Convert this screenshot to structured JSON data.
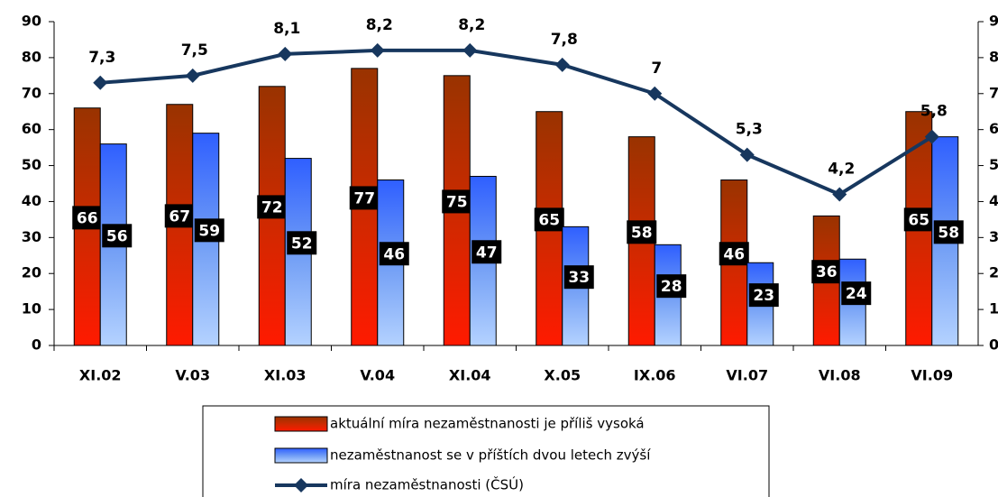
{
  "chart_data": {
    "type": "bar_line",
    "categories": [
      "XI.02",
      "V.03",
      "XI.03",
      "V.04",
      "XI.04",
      "X.05",
      "IX.06",
      "VI.07",
      "VI.08",
      "VI.09"
    ],
    "series": [
      {
        "name": "aktuální míra nezaměstnanosti je příliš vysoká",
        "color": "#cc2200",
        "values": [
          66,
          67,
          72,
          77,
          75,
          65,
          58,
          46,
          36,
          65
        ]
      },
      {
        "name": "nezaměstnanost se v příštích dvou letech zvýší",
        "color": "#3366ff",
        "values": [
          56,
          59,
          52,
          46,
          47,
          33,
          28,
          23,
          24,
          58
        ]
      },
      {
        "name": "míra nezaměstnanosti (ČSÚ)",
        "color": "#17375e",
        "axis": "y2",
        "values": [
          7.3,
          7.5,
          8.1,
          8.2,
          8.2,
          7.8,
          7,
          5.3,
          4.2,
          5.8
        ],
        "value_labels": [
          "7,3",
          "7,5",
          "8,1",
          "8,2",
          "8,2",
          "7,8",
          "7",
          "5,3",
          "4,2",
          "5,8"
        ]
      }
    ],
    "ylim": [
      0,
      90
    ],
    "yticks": [
      0,
      10,
      20,
      30,
      40,
      50,
      60,
      70,
      80,
      90
    ],
    "y2lim": [
      0,
      9
    ],
    "y2ticks": [
      0,
      1,
      2,
      3,
      4,
      5,
      6,
      7,
      8,
      9
    ],
    "legend": "bottom"
  }
}
